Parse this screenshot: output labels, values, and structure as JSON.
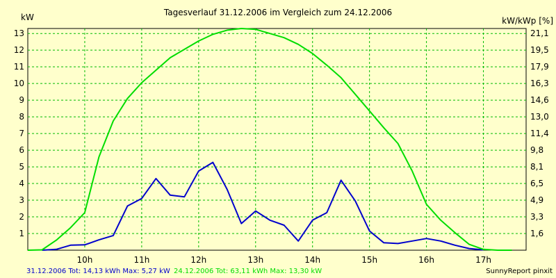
{
  "chart_data": {
    "type": "line",
    "title": "Tagesverlauf 31.12.2006 im Vergleich zum 24.12.2006",
    "ylabel_left": "kW",
    "ylabel_right": "kW/kWp [%]",
    "xlabel": "",
    "x_ticks": [
      "10h",
      "11h",
      "12h",
      "13h",
      "14h",
      "15h",
      "16h",
      "17h"
    ],
    "xlim": [
      9.0,
      17.75
    ],
    "ylim": [
      0,
      13.3
    ],
    "y_ticks_left": [
      1,
      2,
      3,
      4,
      5,
      6,
      7,
      8,
      9,
      10,
      11,
      12,
      13
    ],
    "y_ticks_right": [
      "1,6",
      "3,3",
      "4,9",
      "6,5",
      "8,1",
      "9,8",
      "11,4",
      "13,0",
      "14,6",
      "16,3",
      "17,9",
      "19,5",
      "21,1"
    ],
    "grid": true,
    "series": [
      {
        "name": "31.12.2006",
        "color": "#0000cc",
        "x": [
          9.25,
          9.5,
          9.75,
          10.0,
          10.25,
          10.5,
          10.75,
          11.0,
          11.25,
          11.5,
          11.75,
          12.0,
          12.25,
          12.5,
          12.75,
          13.0,
          13.25,
          13.5,
          13.75,
          14.0,
          14.25,
          14.5,
          14.75,
          15.0,
          15.25,
          15.5,
          15.75,
          16.0,
          16.25,
          16.5,
          16.75,
          17.0
        ],
        "y": [
          0.0,
          0.05,
          0.3,
          0.32,
          0.62,
          0.88,
          2.65,
          3.1,
          4.3,
          3.3,
          3.2,
          4.75,
          5.27,
          3.65,
          1.6,
          2.35,
          1.8,
          1.5,
          0.55,
          1.8,
          2.25,
          4.2,
          2.95,
          1.15,
          0.45,
          0.4,
          0.55,
          0.7,
          0.55,
          0.3,
          0.1,
          0.02
        ]
      },
      {
        "name": "24.12.2006",
        "color": "#00dd00",
        "x": [
          9.0,
          9.25,
          9.5,
          9.75,
          10.0,
          10.25,
          10.5,
          10.75,
          11.0,
          11.25,
          11.5,
          11.75,
          12.0,
          12.25,
          12.5,
          12.75,
          13.0,
          13.25,
          13.5,
          13.75,
          14.0,
          14.25,
          14.5,
          14.75,
          15.0,
          15.25,
          15.5,
          15.75,
          16.0,
          16.25,
          16.5,
          16.75,
          17.0,
          17.25,
          17.5
        ],
        "y": [
          0.0,
          0.02,
          0.6,
          1.35,
          2.25,
          5.6,
          7.75,
          9.1,
          10.05,
          10.8,
          11.55,
          12.05,
          12.55,
          12.95,
          13.2,
          13.3,
          13.25,
          13.0,
          12.75,
          12.35,
          11.8,
          11.1,
          10.35,
          9.35,
          8.35,
          7.35,
          6.4,
          4.75,
          2.75,
          1.8,
          1.05,
          0.35,
          0.05,
          0.0,
          0.0
        ]
      }
    ]
  },
  "footer": {
    "series1_text": "31.12.2006 Tot: 14,13 kWh Max: 5,27 kW",
    "series2_text": "24.12.2006 Tot: 63,11 kWh Max: 13,30 kW",
    "credit": "SunnyReport pinxit"
  }
}
